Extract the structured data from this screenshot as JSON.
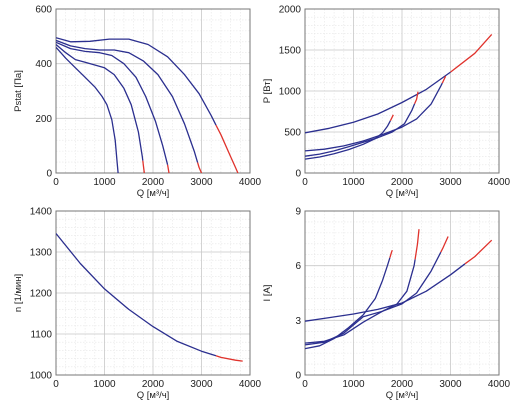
{
  "colors": {
    "curve": "#2b2f8f",
    "overload": "#e0322c",
    "grid_major": "#c8c8c8",
    "grid_minor": "#e6e6e6"
  },
  "chart_data": [
    {
      "type": "line",
      "xlabel": "Q [м³/ч]",
      "ylabel": "Pstat [Па]",
      "xlim": [
        0,
        4000
      ],
      "ylim": [
        0,
        600
      ],
      "xticks": [
        0,
        1000,
        2000,
        3000,
        4000
      ],
      "yticks": [
        0,
        200,
        400,
        600
      ],
      "series": [
        {
          "points": [
            [
              0,
              495
            ],
            [
              300,
              480
            ],
            [
              700,
              482
            ],
            [
              1100,
              490
            ],
            [
              1500,
              490
            ],
            [
              1900,
              470
            ],
            [
              2300,
              425
            ],
            [
              2650,
              360
            ],
            [
              2950,
              290
            ],
            [
              3200,
              210
            ],
            [
              3400,
              140
            ],
            [
              3600,
              60
            ],
            [
              3700,
              20
            ],
            [
              3750,
              0
            ]
          ],
          "overload_from_x": 3300
        },
        {
          "points": [
            [
              0,
              485
            ],
            [
              300,
              465
            ],
            [
              600,
              455
            ],
            [
              900,
              450
            ],
            [
              1200,
              450
            ],
            [
              1500,
              440
            ],
            [
              1800,
              410
            ],
            [
              2100,
              360
            ],
            [
              2400,
              280
            ],
            [
              2650,
              180
            ],
            [
              2850,
              80
            ],
            [
              2950,
              20
            ],
            [
              3000,
              0
            ]
          ],
          "overload_from_x": 2920
        },
        {
          "points": [
            [
              0,
              478
            ],
            [
              300,
              455
            ],
            [
              600,
              445
            ],
            [
              900,
              440
            ],
            [
              1150,
              430
            ],
            [
              1400,
              400
            ],
            [
              1650,
              350
            ],
            [
              1850,
              280
            ],
            [
              2050,
              190
            ],
            [
              2200,
              100
            ],
            [
              2300,
              30
            ],
            [
              2330,
              0
            ]
          ],
          "overload_from_x": 2300
        },
        {
          "points": [
            [
              0,
              470
            ],
            [
              200,
              440
            ],
            [
              400,
              415
            ],
            [
              600,
              405
            ],
            [
              800,
              395
            ],
            [
              1000,
              385
            ],
            [
              1200,
              360
            ],
            [
              1400,
              310
            ],
            [
              1550,
              250
            ],
            [
              1700,
              150
            ],
            [
              1780,
              60
            ],
            [
              1820,
              0
            ]
          ],
          "overload_from_x": 1790
        },
        {
          "points": [
            [
              0,
              460
            ],
            [
              200,
              420
            ],
            [
              400,
              385
            ],
            [
              600,
              350
            ],
            [
              800,
              315
            ],
            [
              950,
              280
            ],
            [
              1050,
              250
            ],
            [
              1150,
              195
            ],
            [
              1220,
              120
            ],
            [
              1260,
              40
            ],
            [
              1280,
              0
            ]
          ]
        }
      ]
    },
    {
      "type": "line",
      "xlabel": "Q [м³/ч]",
      "ylabel": "P [Вт]",
      "xlim": [
        0,
        4000
      ],
      "ylim": [
        0,
        2000
      ],
      "xticks": [
        0,
        1000,
        2000,
        3000,
        4000
      ],
      "yticks": [
        0,
        500,
        1000,
        1500,
        2000
      ],
      "series": [
        {
          "points": [
            [
              0,
              490
            ],
            [
              500,
              545
            ],
            [
              1000,
              620
            ],
            [
              1500,
              720
            ],
            [
              2000,
              860
            ],
            [
              2500,
              1020
            ],
            [
              3000,
              1230
            ],
            [
              3500,
              1460
            ],
            [
              3850,
              1690
            ]
          ],
          "overload_from_x": 3000
        },
        {
          "points": [
            [
              0,
              270
            ],
            [
              400,
              290
            ],
            [
              800,
              330
            ],
            [
              1200,
              390
            ],
            [
              1600,
              470
            ],
            [
              2000,
              560
            ],
            [
              2300,
              660
            ],
            [
              2600,
              840
            ],
            [
              2800,
              1060
            ],
            [
              2900,
              1180
            ]
          ],
          "overload_from_x": 2830
        },
        {
          "points": [
            [
              0,
              205
            ],
            [
              300,
              230
            ],
            [
              600,
              270
            ],
            [
              900,
              320
            ],
            [
              1200,
              375
            ],
            [
              1500,
              430
            ],
            [
              1800,
              500
            ],
            [
              2050,
              600
            ],
            [
              2200,
              760
            ],
            [
              2300,
              900
            ],
            [
              2330,
              990
            ]
          ],
          "overload_from_x": 2260
        },
        {
          "points": [
            [
              0,
              170
            ],
            [
              300,
              195
            ],
            [
              600,
              235
            ],
            [
              900,
              285
            ],
            [
              1200,
              350
            ],
            [
              1450,
              420
            ],
            [
              1600,
              490
            ],
            [
              1700,
              570
            ],
            [
              1780,
              660
            ],
            [
              1820,
              710
            ]
          ],
          "overload_from_x": 1760
        }
      ]
    },
    {
      "type": "line",
      "xlabel": "Q [м³/ч]",
      "ylabel": "n [1/мин]",
      "xlim": [
        0,
        4000
      ],
      "ylim": [
        1000,
        1400
      ],
      "xticks": [
        0,
        1000,
        2000,
        3000,
        4000
      ],
      "yticks": [
        1000,
        1100,
        1200,
        1300,
        1400
      ],
      "series": [
        {
          "points": [
            [
              0,
              1345
            ],
            [
              500,
              1272
            ],
            [
              1000,
              1210
            ],
            [
              1500,
              1160
            ],
            [
              2000,
              1118
            ],
            [
              2500,
              1082
            ],
            [
              3000,
              1058
            ],
            [
              3400,
              1043
            ],
            [
              3700,
              1036
            ],
            [
              3850,
              1034
            ]
          ],
          "overload_from_x": 3300
        }
      ]
    },
    {
      "type": "line",
      "xlabel": "Q [м³/ч]",
      "ylabel": "I [А]",
      "xlim": [
        0,
        4000
      ],
      "ylim": [
        0,
        9
      ],
      "xticks": [
        0,
        1000,
        2000,
        3000,
        4000
      ],
      "yticks": [
        0,
        3,
        6,
        9
      ],
      "series": [
        {
          "points": [
            [
              0,
              2.95
            ],
            [
              500,
              3.15
            ],
            [
              1000,
              3.35
            ],
            [
              1500,
              3.6
            ],
            [
              2000,
              3.95
            ],
            [
              2500,
              4.6
            ],
            [
              3000,
              5.5
            ],
            [
              3500,
              6.5
            ],
            [
              3850,
              7.4
            ]
          ],
          "overload_from_x": 3300
        },
        {
          "points": [
            [
              0,
              1.75
            ],
            [
              400,
              1.85
            ],
            [
              800,
              2.2
            ],
            [
              1200,
              2.9
            ],
            [
              1600,
              3.5
            ],
            [
              2000,
              3.9
            ],
            [
              2300,
              4.5
            ],
            [
              2600,
              5.7
            ],
            [
              2850,
              7.0
            ],
            [
              2950,
              7.6
            ]
          ],
          "overload_from_x": 2800
        },
        {
          "points": [
            [
              0,
              1.65
            ],
            [
              400,
              1.8
            ],
            [
              800,
              2.3
            ],
            [
              1200,
              3.2
            ],
            [
              1600,
              3.5
            ],
            [
              1900,
              3.9
            ],
            [
              2100,
              4.6
            ],
            [
              2250,
              6.0
            ],
            [
              2320,
              7.2
            ],
            [
              2350,
              8.0
            ]
          ],
          "overload_from_x": 2270
        },
        {
          "points": [
            [
              0,
              1.45
            ],
            [
              300,
              1.6
            ],
            [
              600,
              2.0
            ],
            [
              900,
              2.6
            ],
            [
              1200,
              3.3
            ],
            [
              1450,
              4.2
            ],
            [
              1600,
              5.2
            ],
            [
              1700,
              6.0
            ],
            [
              1780,
              6.7
            ],
            [
              1800,
              6.85
            ]
          ],
          "overload_from_x": 1750
        }
      ]
    }
  ]
}
